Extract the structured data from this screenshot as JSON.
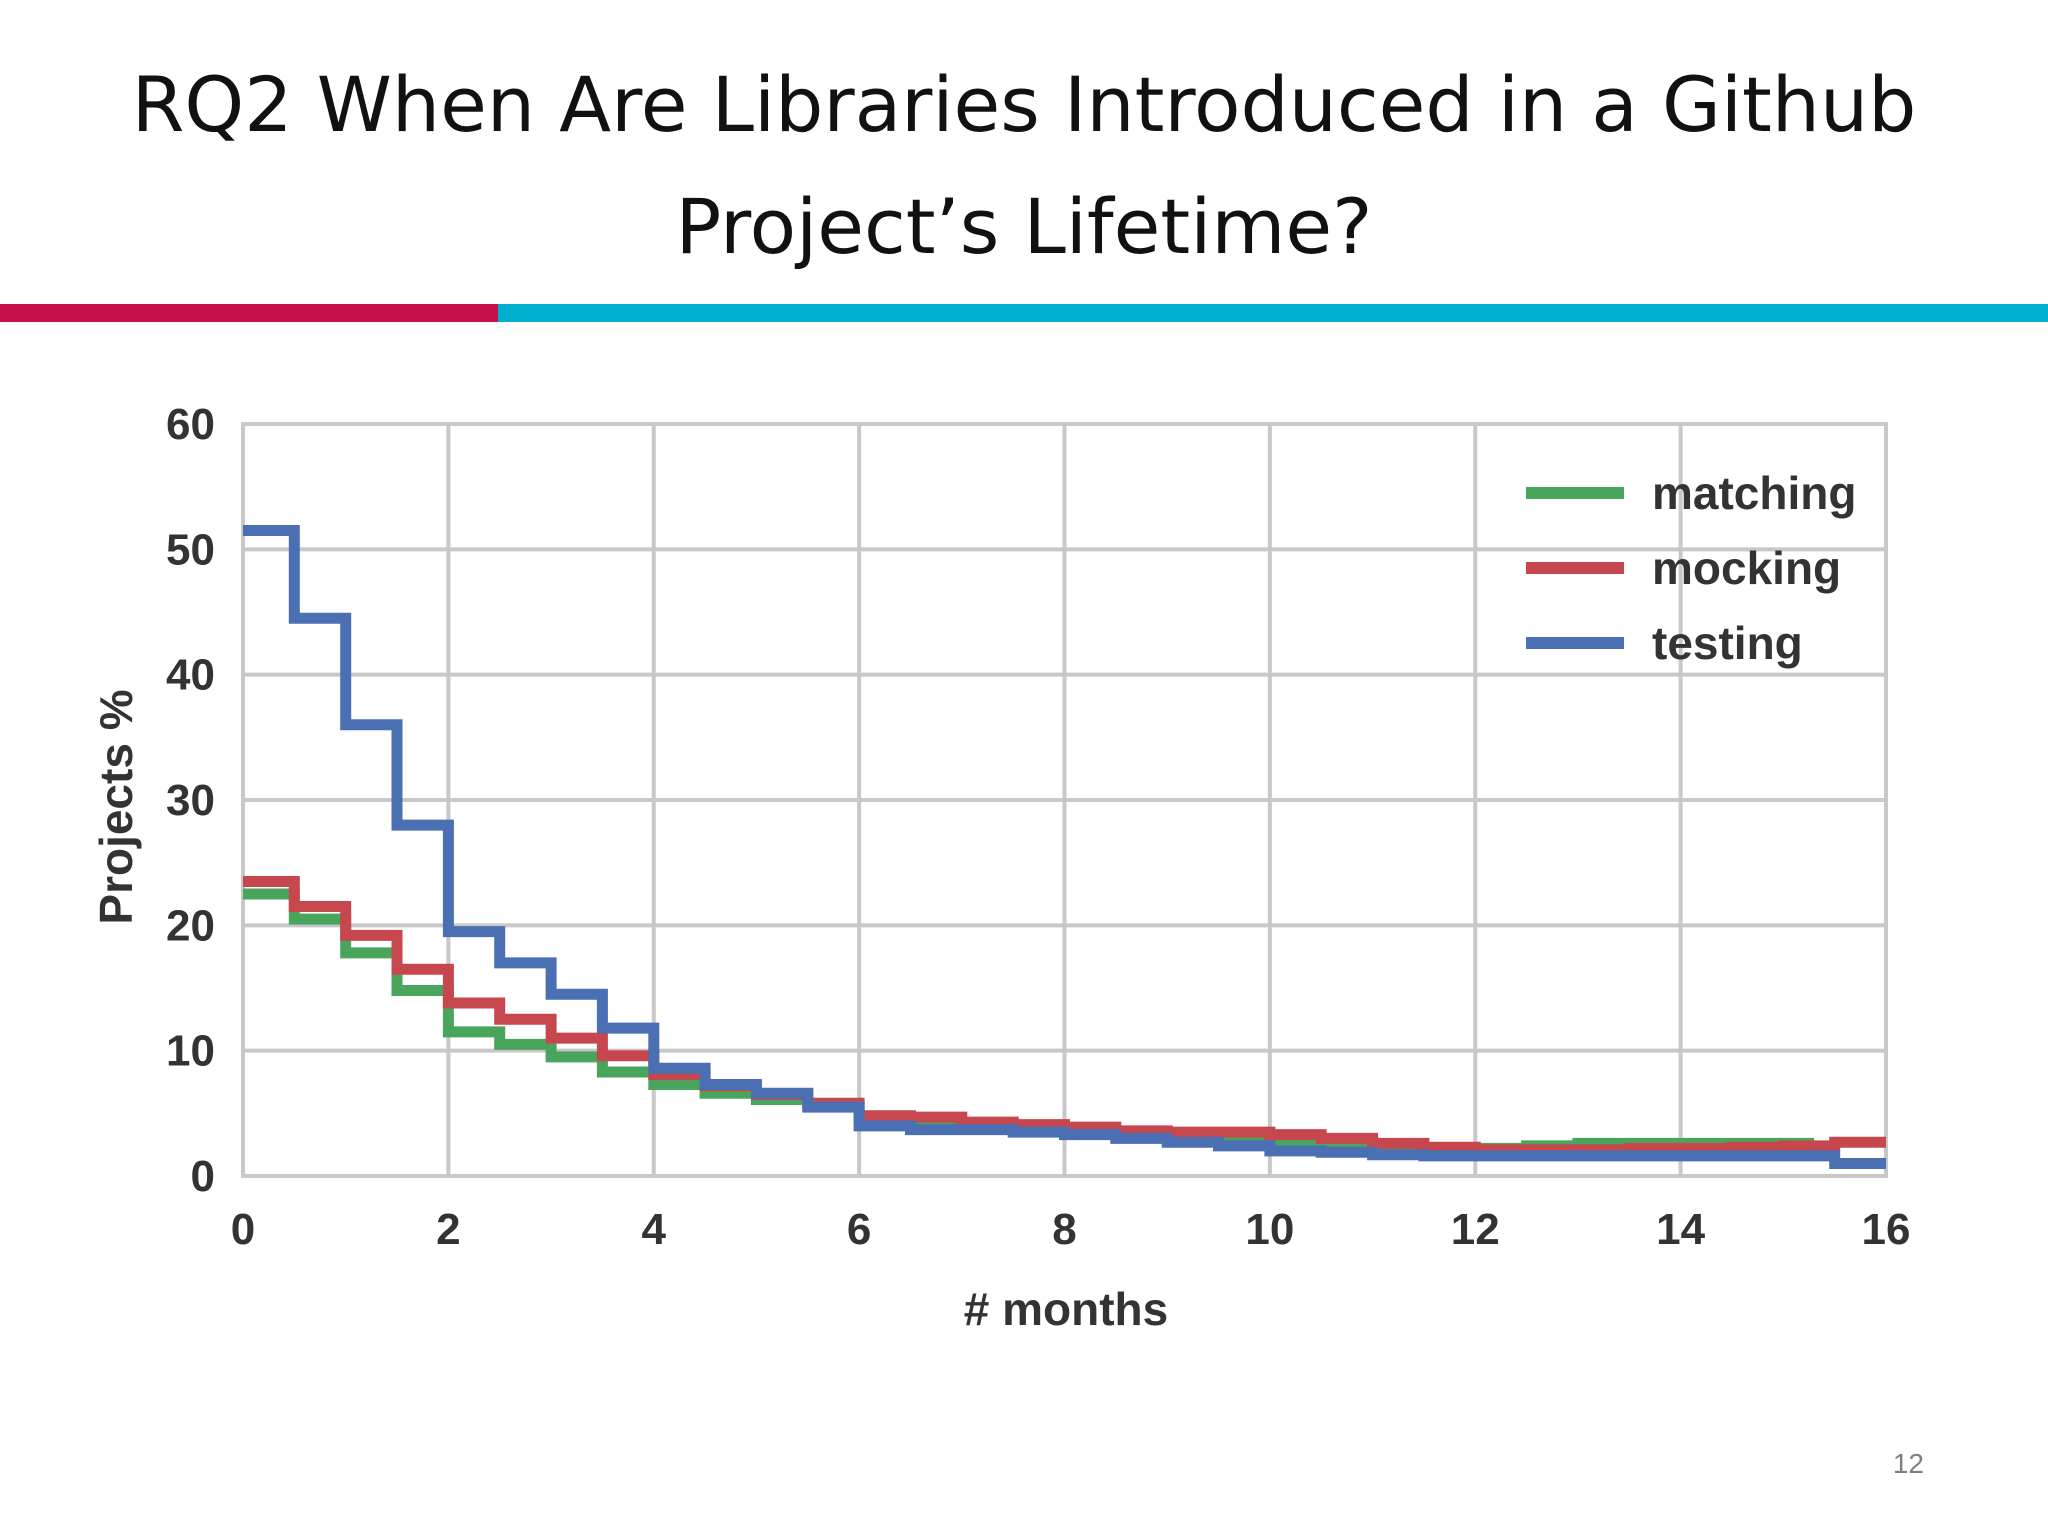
{
  "slide": {
    "title_line1": "RQ2 When Are Libraries Introduced in a Github",
    "title_line2": "Project’s Lifetime?",
    "page_number": "12",
    "accent_left_color": "#c8104a",
    "accent_right_color": "#00b0d0"
  },
  "chart_data": {
    "type": "line",
    "step": true,
    "title": "",
    "xlabel": "# months",
    "ylabel": "Projects %",
    "xlim": [
      0,
      16
    ],
    "ylim": [
      0,
      60
    ],
    "x_ticks": [
      0,
      2,
      4,
      6,
      8,
      10,
      12,
      14,
      16
    ],
    "y_ticks": [
      0,
      10,
      20,
      30,
      40,
      50,
      60
    ],
    "grid": true,
    "legend_position": "top-right",
    "series": [
      {
        "name": "matching",
        "color": "#4aa55c",
        "points": [
          [
            0,
            22.5
          ],
          [
            0.5,
            20.5
          ],
          [
            1,
            17.8
          ],
          [
            1.5,
            14.8
          ],
          [
            2,
            11.5
          ],
          [
            2.5,
            10.5
          ],
          [
            3,
            9.5
          ],
          [
            3.5,
            8.3
          ],
          [
            4,
            7.3
          ],
          [
            4.5,
            6.6
          ],
          [
            5,
            6.1
          ],
          [
            5.5,
            5.6
          ],
          [
            6,
            4.6
          ],
          [
            6.5,
            4.2
          ],
          [
            7,
            4.0
          ],
          [
            7.5,
            3.8
          ],
          [
            8,
            3.6
          ],
          [
            8.5,
            3.3
          ],
          [
            9,
            3.1
          ],
          [
            9.5,
            2.9
          ],
          [
            10,
            2.6
          ],
          [
            10.5,
            2.4
          ],
          [
            11,
            2.2
          ],
          [
            11.5,
            2.1
          ],
          [
            12,
            2.2
          ],
          [
            12.5,
            2.4
          ],
          [
            13,
            2.6
          ],
          [
            13.5,
            2.6
          ],
          [
            14,
            2.6
          ],
          [
            14.5,
            2.6
          ],
          [
            15,
            2.6
          ],
          [
            15.3,
            2.6
          ]
        ]
      },
      {
        "name": "mocking",
        "color": "#c7474f",
        "points": [
          [
            0,
            23.5
          ],
          [
            0.5,
            21.5
          ],
          [
            1,
            19.2
          ],
          [
            1.5,
            16.5
          ],
          [
            2,
            13.8
          ],
          [
            2.5,
            12.5
          ],
          [
            3,
            11.0
          ],
          [
            3.5,
            9.6
          ],
          [
            4,
            8.1
          ],
          [
            4.5,
            7.2
          ],
          [
            5,
            6.5
          ],
          [
            5.5,
            5.8
          ],
          [
            6,
            4.8
          ],
          [
            6.5,
            4.7
          ],
          [
            7,
            4.3
          ],
          [
            7.5,
            4.1
          ],
          [
            8,
            3.9
          ],
          [
            8.5,
            3.6
          ],
          [
            9,
            3.5
          ],
          [
            9.5,
            3.5
          ],
          [
            10,
            3.3
          ],
          [
            10.5,
            3.0
          ],
          [
            11,
            2.6
          ],
          [
            11.5,
            2.3
          ],
          [
            12,
            2.1
          ],
          [
            12.5,
            2.1
          ],
          [
            13,
            2.1
          ],
          [
            13.5,
            2.2
          ],
          [
            14,
            2.2
          ],
          [
            14.5,
            2.3
          ],
          [
            15,
            2.4
          ],
          [
            15.5,
            2.7
          ],
          [
            16,
            2.7
          ]
        ]
      },
      {
        "name": "testing",
        "color": "#4a6fb3",
        "points": [
          [
            0,
            51.5
          ],
          [
            0.5,
            44.5
          ],
          [
            1,
            36.0
          ],
          [
            1.5,
            28.0
          ],
          [
            2,
            19.5
          ],
          [
            2.5,
            17.0
          ],
          [
            3,
            14.5
          ],
          [
            3.5,
            11.8
          ],
          [
            4,
            8.6
          ],
          [
            4.5,
            7.3
          ],
          [
            5,
            6.6
          ],
          [
            5.5,
            5.5
          ],
          [
            6,
            4.0
          ],
          [
            6.5,
            3.7
          ],
          [
            7,
            3.7
          ],
          [
            7.5,
            3.5
          ],
          [
            8,
            3.3
          ],
          [
            8.5,
            3.0
          ],
          [
            9,
            2.7
          ],
          [
            9.5,
            2.4
          ],
          [
            10,
            2.0
          ],
          [
            10.5,
            1.9
          ],
          [
            11,
            1.7
          ],
          [
            11.5,
            1.6
          ],
          [
            12,
            1.6
          ],
          [
            12.5,
            1.6
          ],
          [
            13,
            1.6
          ],
          [
            13.5,
            1.6
          ],
          [
            14,
            1.6
          ],
          [
            14.5,
            1.6
          ],
          [
            15,
            1.6
          ],
          [
            15.5,
            1.0
          ],
          [
            16,
            1.0
          ]
        ]
      }
    ]
  }
}
